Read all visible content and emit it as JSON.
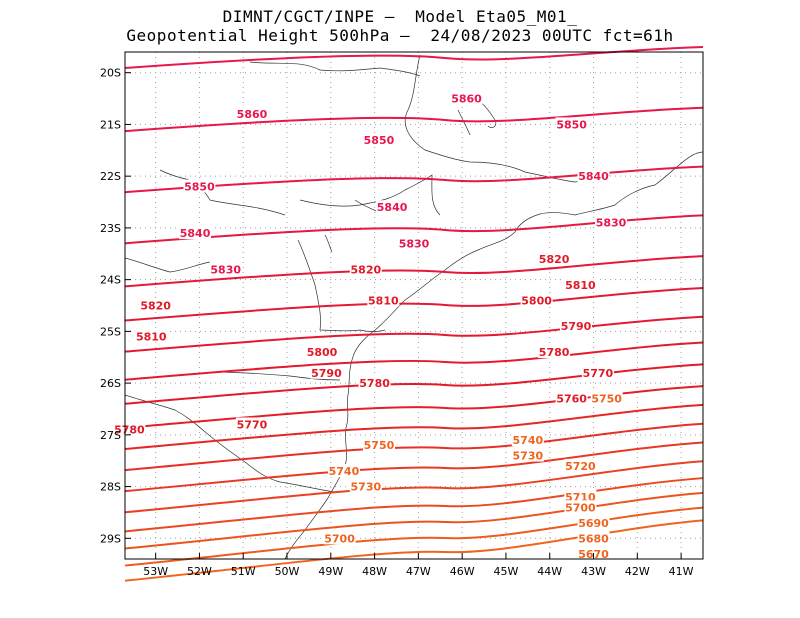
{
  "header": {
    "line1": "DIMNT/CGCT/INPE –  Model Eta05_M01_",
    "line2": "Geopotential Height 500hPa –  24/08/2023 00UTC fct=61h"
  },
  "map": {
    "lon_range": [
      -53.7,
      -40.5
    ],
    "lat_range": [
      -29.4,
      -19.6
    ],
    "x_ticks": [
      {
        "lon": -53,
        "label": "53W"
      },
      {
        "lon": -52,
        "label": "52W"
      },
      {
        "lon": -51,
        "label": "51W"
      },
      {
        "lon": -50,
        "label": "50W"
      },
      {
        "lon": -49,
        "label": "49W"
      },
      {
        "lon": -48,
        "label": "48W"
      },
      {
        "lon": -47,
        "label": "47W"
      },
      {
        "lon": -46,
        "label": "46W"
      },
      {
        "lon": -45,
        "label": "45W"
      },
      {
        "lon": -44,
        "label": "44W"
      },
      {
        "lon": -43,
        "label": "43W"
      },
      {
        "lon": -42,
        "label": "42W"
      },
      {
        "lon": -41,
        "label": "41W"
      }
    ],
    "y_ticks": [
      {
        "lat": -20,
        "label": "20S"
      },
      {
        "lat": -21,
        "label": "21S"
      },
      {
        "lat": -22,
        "label": "22S"
      },
      {
        "lat": -23,
        "label": "23S"
      },
      {
        "lat": -24,
        "label": "24S"
      },
      {
        "lat": -25,
        "label": "25S"
      },
      {
        "lat": -26,
        "label": "26S"
      },
      {
        "lat": -27,
        "label": "27S"
      },
      {
        "lat": -28,
        "label": "28S"
      },
      {
        "lat": -29,
        "label": "29S"
      }
    ],
    "grid": "dotted",
    "contour_interval": 10,
    "contour_labels": [
      {
        "value": "5860",
        "lon": -50.8,
        "lat": -20.8
      },
      {
        "value": "5860",
        "lon": -45.9,
        "lat": -20.5
      },
      {
        "value": "5850",
        "lon": -47.9,
        "lat": -21.3
      },
      {
        "value": "5850",
        "lon": -43.5,
        "lat": -21.0
      },
      {
        "value": "5850",
        "lon": -52.0,
        "lat": -22.2
      },
      {
        "value": "5840",
        "lon": -47.6,
        "lat": -22.6
      },
      {
        "value": "5840",
        "lon": -43.0,
        "lat": -22.0
      },
      {
        "value": "5840",
        "lon": -52.1,
        "lat": -23.1
      },
      {
        "value": "5830",
        "lon": -47.1,
        "lat": -23.3
      },
      {
        "value": "5830",
        "lon": -42.6,
        "lat": -22.9
      },
      {
        "value": "5830",
        "lon": -51.4,
        "lat": -23.8
      },
      {
        "value": "5820",
        "lon": -48.2,
        "lat": -23.8
      },
      {
        "value": "5820",
        "lon": -43.9,
        "lat": -23.6
      },
      {
        "value": "5820",
        "lon": -53.0,
        "lat": -24.5
      },
      {
        "value": "5810",
        "lon": -47.8,
        "lat": -24.4
      },
      {
        "value": "5810",
        "lon": -43.3,
        "lat": -24.1
      },
      {
        "value": "5810",
        "lon": -53.1,
        "lat": -25.1
      },
      {
        "value": "5800",
        "lon": -49.2,
        "lat": -25.4
      },
      {
        "value": "5800",
        "lon": -44.3,
        "lat": -24.4
      },
      {
        "value": "5790",
        "lon": -49.1,
        "lat": -25.8
      },
      {
        "value": "5790",
        "lon": -43.4,
        "lat": -24.9
      },
      {
        "value": "5780",
        "lon": -48.0,
        "lat": -26.0
      },
      {
        "value": "5780",
        "lon": -43.9,
        "lat": -25.4
      },
      {
        "value": "5780",
        "lon": -53.6,
        "lat": -26.9
      },
      {
        "value": "5770",
        "lon": -50.8,
        "lat": -26.8
      },
      {
        "value": "5770",
        "lon": -42.9,
        "lat": -25.8
      },
      {
        "value": "5760",
        "lon": -43.5,
        "lat": -26.3
      },
      {
        "value": "5750",
        "lon": -42.7,
        "lat": -26.3
      },
      {
        "value": "5750",
        "lon": -47.9,
        "lat": -27.2
      },
      {
        "value": "5740",
        "lon": -44.5,
        "lat": -27.1
      },
      {
        "value": "5740",
        "lon": -48.7,
        "lat": -27.7
      },
      {
        "value": "5730",
        "lon": -44.5,
        "lat": -27.4
      },
      {
        "value": "5730",
        "lon": -48.2,
        "lat": -28.0
      },
      {
        "value": "5720",
        "lon": -43.3,
        "lat": -27.6
      },
      {
        "value": "5710",
        "lon": -43.3,
        "lat": -28.2
      },
      {
        "value": "5700",
        "lon": -43.3,
        "lat": -28.4
      },
      {
        "value": "5700",
        "lon": -48.8,
        "lat": -29.0
      },
      {
        "value": "5690",
        "lon": -43.0,
        "lat": -28.7
      },
      {
        "value": "5680",
        "lon": -43.0,
        "lat": -29.0
      },
      {
        "value": "5670",
        "lon": -43.0,
        "lat": -29.3
      }
    ],
    "colors": {
      "contour_high": "#e8174d",
      "contour_mid": "#e21a26",
      "contour_low": "#f0641e",
      "coastline": "#303030",
      "grid": "#a0a0a0"
    }
  }
}
